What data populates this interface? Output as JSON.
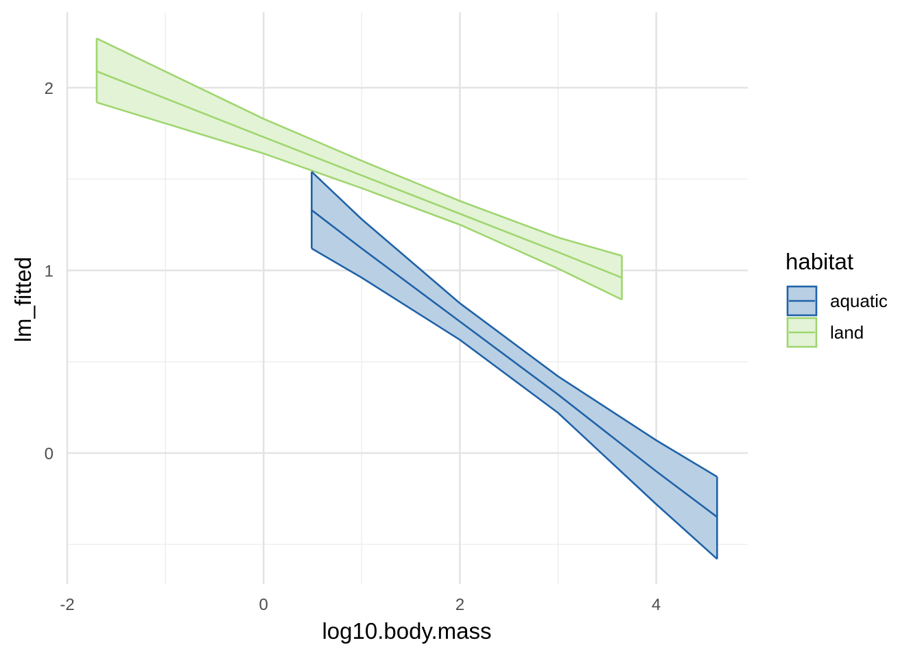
{
  "chart_data": {
    "type": "line",
    "xlabel": "log10.body.mass",
    "ylabel": "lm_fitted",
    "xlim": [
      -2,
      4.82
    ],
    "ylim": [
      -0.72,
      2.42
    ],
    "x_ticks": [
      {
        "value": -2,
        "label": "-2"
      },
      {
        "value": 0,
        "label": "0"
      },
      {
        "value": 2,
        "label": "2"
      },
      {
        "value": 4,
        "label": "4"
      }
    ],
    "y_ticks": [
      {
        "value": 0,
        "label": "0"
      },
      {
        "value": 1,
        "label": "1"
      },
      {
        "value": 2,
        "label": "2"
      }
    ],
    "grid": true,
    "legend": {
      "title": "habitat",
      "position": "right",
      "items": [
        {
          "key": "aquatic",
          "label": "aquatic"
        },
        {
          "key": "land",
          "label": "land"
        }
      ]
    },
    "series": [
      {
        "name": "aquatic",
        "color": "#1f62a8",
        "fill": "#b9cfe3",
        "x": [
          0.49,
          1.0,
          2.0,
          3.0,
          4.0,
          4.62
        ],
        "y": [
          1.33,
          1.12,
          0.72,
          0.32,
          -0.1,
          -0.35
        ],
        "lower": [
          1.12,
          0.96,
          0.62,
          0.22,
          -0.28,
          -0.58
        ],
        "upper": [
          1.54,
          1.28,
          0.82,
          0.42,
          0.07,
          -0.13
        ]
      },
      {
        "name": "land",
        "color": "#9fd66f",
        "fill": "#e3f3d6",
        "x": [
          -1.7,
          0.0,
          1.0,
          2.0,
          3.0,
          3.65
        ],
        "y": [
          2.09,
          1.73,
          1.52,
          1.31,
          1.1,
          0.96
        ],
        "lower": [
          1.92,
          1.64,
          1.45,
          1.25,
          1.01,
          0.84
        ],
        "upper": [
          2.27,
          1.83,
          1.6,
          1.38,
          1.18,
          1.08
        ]
      }
    ]
  }
}
